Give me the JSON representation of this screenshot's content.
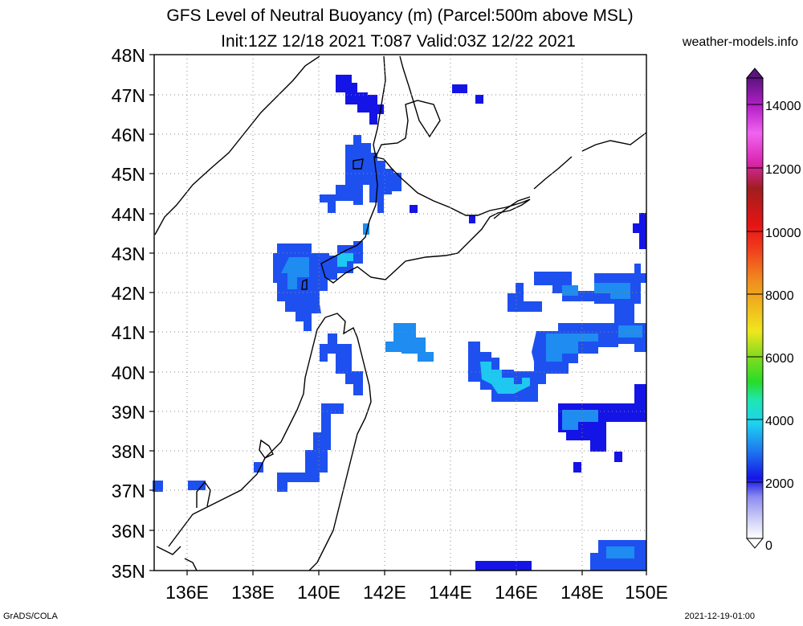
{
  "title_line1": "GFS Level of Neutral Buoyancy (m) (Parcel:500m above MSL)",
  "title_line2": "Init:12Z 12/18 2021 T:087 Valid:03Z 12/22 2021",
  "site": "weather-models.info",
  "footer_left": "GrADS/COLA",
  "footer_right": "2021-12-19-01:00",
  "lat_labels": [
    "48N",
    "47N",
    "46N",
    "45N",
    "44N",
    "43N",
    "42N",
    "41N",
    "40N",
    "39N",
    "38N",
    "37N",
    "36N",
    "35N"
  ],
  "lon_labels": [
    "136E",
    "138E",
    "140E",
    "142E",
    "144E",
    "146E",
    "148E",
    "150E"
  ],
  "colorbar_labels": [
    "14000",
    "12000",
    "10000",
    "8000",
    "6000",
    "4000",
    "2000",
    "0"
  ],
  "colors": {
    "blue_dark": "#1414e6",
    "blue_mid": "#1e50f0",
    "blue_light": "#1e8cf0",
    "cyan": "#1ec8f0"
  }
}
